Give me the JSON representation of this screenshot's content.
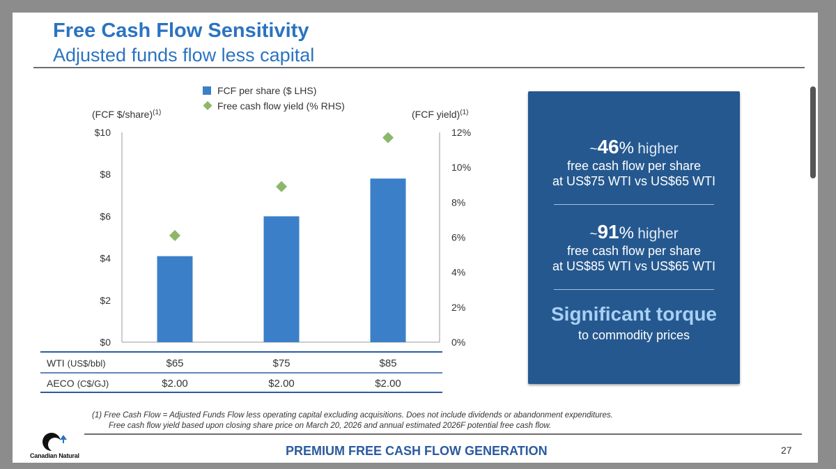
{
  "header": {
    "title": "Free Cash Flow Sensitivity",
    "subtitle": "Adjusted funds flow less capital"
  },
  "chart_data": {
    "type": "bar",
    "categories": [
      "$65",
      "$75",
      "$85"
    ],
    "series": [
      {
        "name": "FCF per share ($ LHS)",
        "kind": "bar",
        "axis": "left",
        "color": "#3b7fc9",
        "values": [
          4.1,
          6.0,
          7.8
        ]
      },
      {
        "name": "Free cash flow yield (% RHS)",
        "kind": "marker",
        "axis": "right",
        "color": "#8db76a",
        "values": [
          6.1,
          8.9,
          11.7
        ]
      }
    ],
    "left_axis": {
      "label": "(FCF $/share)",
      "superscript": "(1)",
      "ticks": [
        "$0",
        "$2",
        "$4",
        "$6",
        "$8",
        "$10"
      ],
      "ylim": [
        0,
        10
      ]
    },
    "right_axis": {
      "label": "(FCF yield)",
      "superscript": "(1)",
      "ticks": [
        "0%",
        "2%",
        "4%",
        "6%",
        "8%",
        "10%",
        "12%"
      ],
      "ylim": [
        0,
        12
      ]
    },
    "legend": [
      "FCF per share ($ LHS)",
      "Free cash flow yield (% RHS)"
    ],
    "legend_position": "top-center",
    "table": [
      {
        "label": "WTI",
        "unit": "(US$/bbl)",
        "values": [
          "$65",
          "$75",
          "$85"
        ]
      },
      {
        "label": "AECO",
        "unit": "(C$/GJ)",
        "values": [
          "$2.00",
          "$2.00",
          "$2.00"
        ]
      }
    ]
  },
  "callout": {
    "stat1": {
      "tilde": "~",
      "number": "46",
      "pct": "%",
      "word": "higher",
      "line1": "free cash flow per share",
      "line2": "at US$75 WTI vs US$65 WTI"
    },
    "stat2": {
      "tilde": "~",
      "number": "91",
      "pct": "%",
      "word": "higher",
      "line1": "free cash flow per share",
      "line2": "at US$85 WTI vs US$65 WTI"
    },
    "torque_title": "Significant torque",
    "torque_sub": "to commodity prices",
    "bg_color": "#25588f"
  },
  "footnote": {
    "line1": "(1)  Free Cash Flow = Adjusted Funds Flow less operating capital excluding acquisitions. Does not include dividends or abandonment expenditures.",
    "line2": "Free cash flow yield based upon closing share price on March 20, 2026 and annual estimated 2026F potential free cash flow."
  },
  "footer": {
    "title": "PREMIUM FREE CASH FLOW GENERATION",
    "page_number": "27",
    "logo_text": "Canadian Natural"
  }
}
